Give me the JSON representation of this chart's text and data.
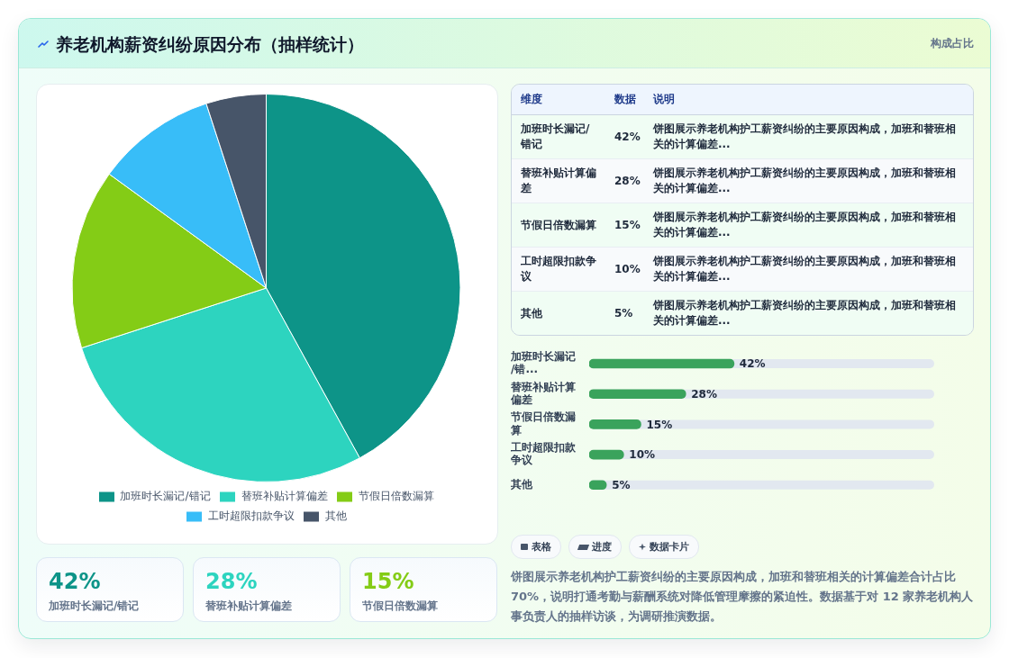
{
  "chart_data": [
    {
      "type": "pie",
      "title": "养老机构薪资纠纷原因分布（抽样统计）",
      "categories": [
        "加班时长漏记/错记",
        "替班补贴计算偏差",
        "节假日倍数漏算",
        "工时超限扣款争议",
        "其他"
      ],
      "values": [
        42,
        28,
        15,
        10,
        5
      ],
      "colors": [
        "#0d9488",
        "#2dd4bf",
        "#84cc16",
        "#38bdf8",
        "#475569"
      ],
      "legend": "bottom"
    },
    {
      "type": "other",
      "subtitle": "构成占比",
      "categories": [
        "加班时长漏记/错记",
        "替班补贴计算偏差",
        "节假日倍数漏算",
        "工时超限扣款争议",
        "其他"
      ],
      "value_labels": [
        "42%",
        "28%",
        "15%",
        "10%",
        "5%"
      ],
      "annotations": [
        "维度",
        "数据",
        "说明",
        "饼图展示养老机构护工薪资纠纷的主要原因构成，加班和替班相关的计算偏差...",
        "饼图展示养老机构护工薪资纠纷的主要原因构成，加班和替班相关的计算偏差...",
        "饼图展示养老机构护工薪资纠纷的主要原因构成，加班和替班相关的计算偏差...",
        "饼图展示养老机构护工薪资纠纷的主要原因构成，加班和替班相关的计算偏差...",
        "饼图展示养老机构护工薪资纠纷的主要原因构成，加班和替班相关的计算偏差..."
      ]
    },
    {
      "type": "bar",
      "orientation": "horizontal",
      "categories": [
        "加班时长漏记/错...",
        "替班补贴计算偏差",
        "节假日倍数漏算",
        "工时超限扣款争议",
        "其他"
      ],
      "values": [
        42,
        28,
        15,
        10,
        5
      ],
      "color": "#3aa35c",
      "value_labels": [
        "42%",
        "28%",
        "15%",
        "10%",
        "5%"
      ],
      "tick_labels": "y"
    },
    {
      "type": "other",
      "categories": [
        "加班时长漏记/错记",
        "替班补贴计算偏差",
        "节假日倍数漏算"
      ],
      "value_labels": [
        "42%",
        "28%",
        "15%"
      ]
    },
    {
      "type": "other",
      "annotations": [
        "表格",
        "进度",
        "数据卡片",
        "饼图展示养老机构护工薪资纠纷的主要原因构成，加班和替班相关的计算偏差合计占比 70%，说明打通考勤与薪酬系统对降低管理摩擦的紧迫性。数据基于对 12 家养老机构人事负责人的抽样访谈，为调研推演数据。"
      ]
    }
  ]
}
